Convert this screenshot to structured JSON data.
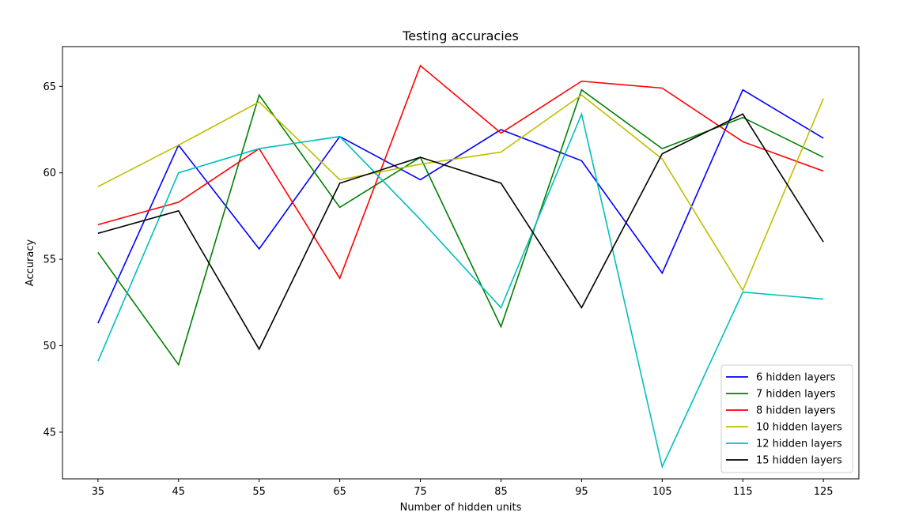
{
  "chart_data": {
    "type": "line",
    "title": "Testing accuracies",
    "xlabel": "Number of hidden units",
    "ylabel": "Accuracy",
    "x": [
      35,
      45,
      55,
      65,
      75,
      85,
      95,
      105,
      115,
      125
    ],
    "xlim": [
      30.6,
      129.4
    ],
    "ylim": [
      42.3,
      67.3
    ],
    "xticks": [
      35,
      45,
      55,
      65,
      75,
      85,
      95,
      105,
      115,
      125
    ],
    "yticks": [
      45,
      50,
      55,
      60,
      65
    ],
    "grid": false,
    "legend_position": "lower-right",
    "series": [
      {
        "name": "6 hidden layers",
        "color": "#0000ff",
        "values": [
          51.3,
          61.6,
          55.6,
          62.1,
          59.6,
          62.5,
          60.7,
          54.2,
          64.8,
          62.0
        ]
      },
      {
        "name": "7 hidden layers",
        "color": "#008000",
        "values": [
          55.4,
          48.9,
          64.5,
          58.0,
          60.9,
          51.1,
          64.8,
          61.4,
          63.2,
          60.9
        ]
      },
      {
        "name": "8 hidden layers",
        "color": "#ff0000",
        "values": [
          57.0,
          58.3,
          61.4,
          53.9,
          66.2,
          62.3,
          65.3,
          64.9,
          61.8,
          60.1
        ]
      },
      {
        "name": "10 hidden layers",
        "color": "#bfbf00",
        "values": [
          59.2,
          61.6,
          64.1,
          59.6,
          60.5,
          61.2,
          64.5,
          60.8,
          53.2,
          64.3
        ]
      },
      {
        "name": "12 hidden layers",
        "color": "#00bfbf",
        "values": [
          49.1,
          60.0,
          61.4,
          62.1,
          57.3,
          52.2,
          63.4,
          43.0,
          53.1,
          52.7
        ]
      },
      {
        "name": "15 hidden layers",
        "color": "#000000",
        "values": [
          56.5,
          57.8,
          49.8,
          59.4,
          60.9,
          59.4,
          52.2,
          61.1,
          63.4,
          56.0
        ]
      }
    ]
  }
}
